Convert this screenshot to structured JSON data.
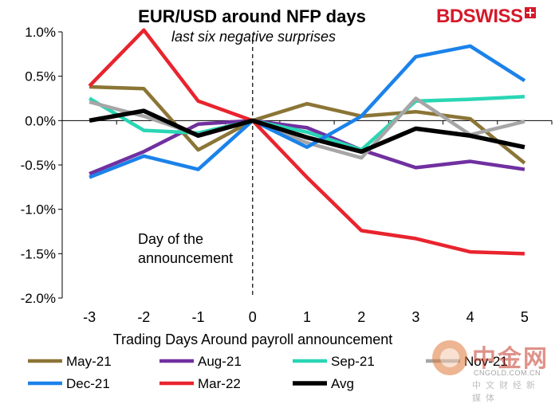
{
  "chart_data": {
    "type": "line",
    "title": "EUR/USD around NFP days",
    "subtitle": "last six negative surprises",
    "xlabel": "Trading Days Around payroll announcement",
    "ylabel": "",
    "x": [
      -3,
      -2,
      -1,
      0,
      1,
      2,
      3,
      4,
      5
    ],
    "ylim": [
      -2.0,
      1.0
    ],
    "yticks": [
      1.0,
      0.5,
      0.0,
      -0.5,
      -1.0,
      -1.5,
      -2.0
    ],
    "ytick_labels": [
      "1.0%",
      "0.5%",
      "0.0%",
      "-0.5%",
      "-1.0%",
      "-1.5%",
      "-2.0%"
    ],
    "xtick_labels": [
      "-3",
      "-2",
      "-1",
      "0",
      "1",
      "2",
      "3",
      "4",
      "5"
    ],
    "grid": false,
    "legend_position": "bottom",
    "annotation": "Day of the\nannouncement",
    "series": [
      {
        "name": "May-21",
        "color": "#8b7536",
        "values": [
          0.38,
          0.36,
          -0.33,
          0.0,
          0.19,
          0.05,
          0.1,
          0.02,
          -0.48
        ]
      },
      {
        "name": "Aug-21",
        "color": "#7030a0",
        "values": [
          -0.6,
          -0.35,
          -0.04,
          0.0,
          -0.08,
          -0.33,
          -0.53,
          -0.46,
          -0.55
        ]
      },
      {
        "name": "Sep-21",
        "color": "#2ad6b4",
        "values": [
          0.25,
          -0.11,
          -0.14,
          0.0,
          -0.13,
          -0.33,
          0.22,
          0.24,
          0.27
        ]
      },
      {
        "name": "Nov-21",
        "color": "#a6a6a6",
        "values": [
          0.21,
          0.05,
          -0.16,
          0.0,
          -0.25,
          -0.42,
          0.25,
          -0.16,
          -0.01
        ]
      },
      {
        "name": "Dec-21",
        "color": "#1b82ea",
        "values": [
          -0.64,
          -0.4,
          -0.55,
          0.0,
          -0.3,
          0.05,
          0.72,
          0.84,
          0.45
        ]
      },
      {
        "name": "Mar-22",
        "color": "#e8242e",
        "values": [
          0.39,
          1.02,
          0.22,
          0.0,
          -0.64,
          -1.24,
          -1.33,
          -1.48,
          -1.5
        ]
      },
      {
        "name": "Avg",
        "color": "#000000",
        "values": [
          0.0,
          0.11,
          -0.17,
          0.0,
          -0.19,
          -0.35,
          -0.09,
          -0.17,
          -0.3
        ],
        "bold": true
      }
    ]
  },
  "brand": {
    "logo_text_1": "BD",
    "logo_text_2": "SWISS"
  },
  "watermark": {
    "cn_text": "中金网",
    "url": "CNGOLD.COM.CN",
    "sub": "中文财经新媒体"
  }
}
